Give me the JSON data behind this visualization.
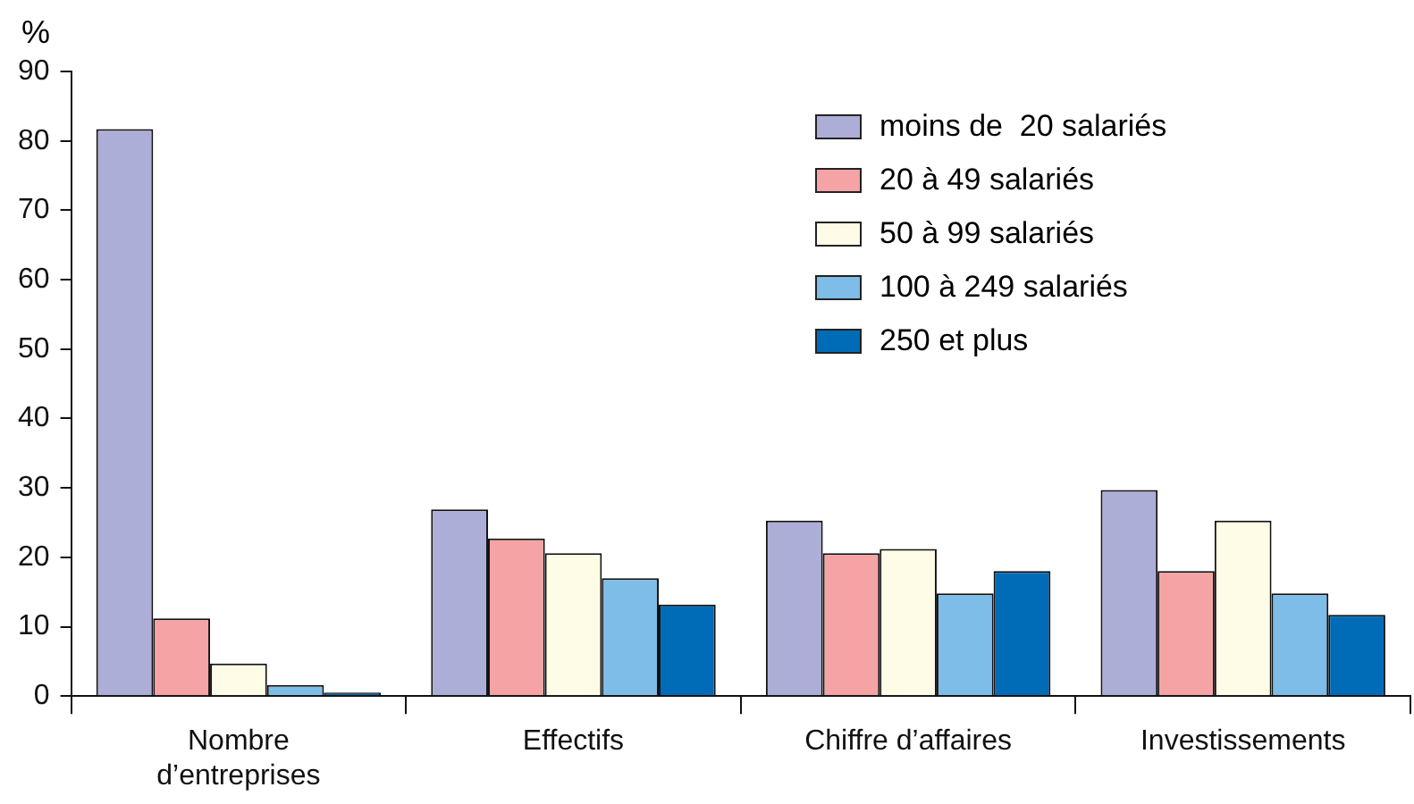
{
  "chart_data": {
    "type": "bar",
    "ylabel": "%",
    "categories": [
      "Nombre d’entreprises",
      "Effectifs",
      "Chiffre d’affaires",
      "Investissements"
    ],
    "series": [
      {
        "name": "moins de  20 salariés",
        "color": "#adaed8",
        "values": [
          81.7,
          26.9,
          25.3,
          29.7
        ]
      },
      {
        "name": "20 à 49 salariés",
        "color": "#f5a3a5",
        "values": [
          11.2,
          22.7,
          20.6,
          18.0
        ]
      },
      {
        "name": "50 à 99 salariés",
        "color": "#fefbe6",
        "values": [
          4.7,
          20.6,
          21.2,
          25.3
        ]
      },
      {
        "name": "100 à 249 salariés",
        "color": "#7dbde8",
        "values": [
          1.6,
          17.0,
          14.8,
          14.8
        ]
      },
      {
        "name": "250 et plus",
        "color": "#006bb6",
        "values": [
          0.5,
          13.2,
          18.0,
          11.7
        ]
      }
    ],
    "ylim": [
      0,
      90
    ],
    "yticks": [
      0,
      10,
      20,
      30,
      40,
      50,
      60,
      70,
      80,
      90
    ],
    "grid": false,
    "legend": "top right"
  }
}
